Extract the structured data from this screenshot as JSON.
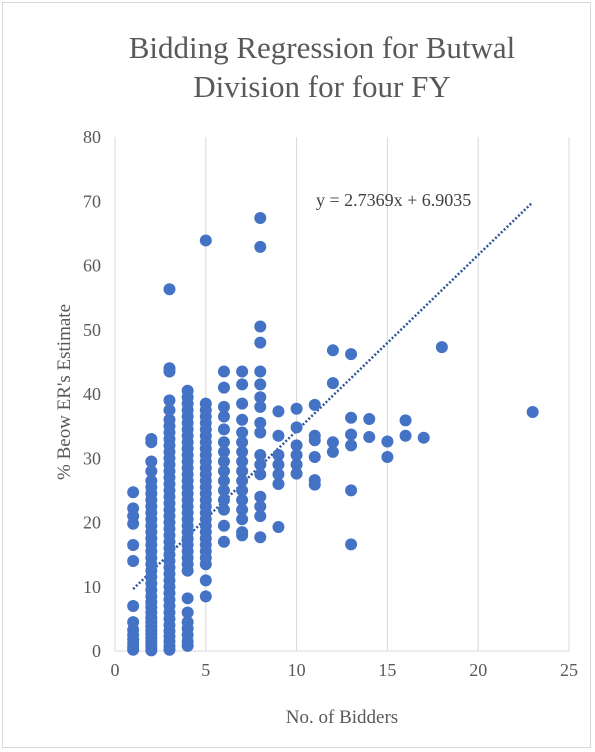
{
  "chart_data": {
    "type": "scatter",
    "title_lines": [
      "Bidding Regression for Butwal",
      "Division for four FY"
    ],
    "xlabel": "No. of Bidders",
    "ylabel": "% Beow ER's Estimate",
    "xlim": [
      0,
      25
    ],
    "ylim": [
      0,
      80
    ],
    "x_ticks": [
      "0",
      "5",
      "10",
      "15",
      "20",
      "25"
    ],
    "y_ticks": [
      "0",
      "10",
      "20",
      "30",
      "40",
      "50",
      "60",
      "70",
      "80"
    ],
    "grid": "vertical",
    "marker_color": "#4472C4",
    "trendline": {
      "type": "linear",
      "slope": 2.7369,
      "intercept": 6.9035,
      "x_range": [
        1,
        23
      ],
      "equation": "y = 2.7369x + 6.9035",
      "color": "#2F5597"
    },
    "points": [
      {
        "x": 1,
        "y": 0.2
      },
      {
        "x": 1,
        "y": 0.6
      },
      {
        "x": 1,
        "y": 1.2
      },
      {
        "x": 1,
        "y": 1.8
      },
      {
        "x": 1,
        "y": 2.5
      },
      {
        "x": 1,
        "y": 3.3
      },
      {
        "x": 1,
        "y": 4.5
      },
      {
        "x": 1,
        "y": 7
      },
      {
        "x": 1,
        "y": 14
      },
      {
        "x": 1,
        "y": 16.5
      },
      {
        "x": 1,
        "y": 19.8
      },
      {
        "x": 1,
        "y": 21
      },
      {
        "x": 1,
        "y": 22.2
      },
      {
        "x": 1,
        "y": 24.7
      },
      {
        "x": 2,
        "y": 0.1
      },
      {
        "x": 2,
        "y": 0.5
      },
      {
        "x": 2,
        "y": 1
      },
      {
        "x": 2,
        "y": 1.5
      },
      {
        "x": 2,
        "y": 2
      },
      {
        "x": 2,
        "y": 2.6
      },
      {
        "x": 2,
        "y": 3.2
      },
      {
        "x": 2,
        "y": 3.8
      },
      {
        "x": 2,
        "y": 4.5
      },
      {
        "x": 2,
        "y": 5.2
      },
      {
        "x": 2,
        "y": 6
      },
      {
        "x": 2,
        "y": 6.8
      },
      {
        "x": 2,
        "y": 7.6
      },
      {
        "x": 2,
        "y": 8.5
      },
      {
        "x": 2,
        "y": 9.5
      },
      {
        "x": 2,
        "y": 10.5
      },
      {
        "x": 2,
        "y": 11.5
      },
      {
        "x": 2,
        "y": 12.5
      },
      {
        "x": 2,
        "y": 13.5
      },
      {
        "x": 2,
        "y": 14.5
      },
      {
        "x": 2,
        "y": 15.5
      },
      {
        "x": 2,
        "y": 16.5
      },
      {
        "x": 2,
        "y": 17.5
      },
      {
        "x": 2,
        "y": 18.5
      },
      {
        "x": 2,
        "y": 19.5
      },
      {
        "x": 2,
        "y": 20.5
      },
      {
        "x": 2,
        "y": 21.5
      },
      {
        "x": 2,
        "y": 22.5
      },
      {
        "x": 2,
        "y": 23.5
      },
      {
        "x": 2,
        "y": 24.5
      },
      {
        "x": 2,
        "y": 25.5
      },
      {
        "x": 2,
        "y": 26.5
      },
      {
        "x": 2,
        "y": 28
      },
      {
        "x": 2,
        "y": 29.5
      },
      {
        "x": 2,
        "y": 32.5
      },
      {
        "x": 2,
        "y": 33
      },
      {
        "x": 3,
        "y": 0.2
      },
      {
        "x": 3,
        "y": 0.8
      },
      {
        "x": 3,
        "y": 1.5
      },
      {
        "x": 3,
        "y": 2.3
      },
      {
        "x": 3,
        "y": 3.1
      },
      {
        "x": 3,
        "y": 4
      },
      {
        "x": 3,
        "y": 5
      },
      {
        "x": 3,
        "y": 6
      },
      {
        "x": 3,
        "y": 7
      },
      {
        "x": 3,
        "y": 8
      },
      {
        "x": 3,
        "y": 9
      },
      {
        "x": 3,
        "y": 10
      },
      {
        "x": 3,
        "y": 11
      },
      {
        "x": 3,
        "y": 12
      },
      {
        "x": 3,
        "y": 13
      },
      {
        "x": 3,
        "y": 14
      },
      {
        "x": 3,
        "y": 15
      },
      {
        "x": 3,
        "y": 16
      },
      {
        "x": 3,
        "y": 17
      },
      {
        "x": 3,
        "y": 18
      },
      {
        "x": 3,
        "y": 19
      },
      {
        "x": 3,
        "y": 20
      },
      {
        "x": 3,
        "y": 21
      },
      {
        "x": 3,
        "y": 22
      },
      {
        "x": 3,
        "y": 23
      },
      {
        "x": 3,
        "y": 24
      },
      {
        "x": 3,
        "y": 25
      },
      {
        "x": 3,
        "y": 26
      },
      {
        "x": 3,
        "y": 27
      },
      {
        "x": 3,
        "y": 28
      },
      {
        "x": 3,
        "y": 29
      },
      {
        "x": 3,
        "y": 30
      },
      {
        "x": 3,
        "y": 31
      },
      {
        "x": 3,
        "y": 32
      },
      {
        "x": 3,
        "y": 33
      },
      {
        "x": 3,
        "y": 34
      },
      {
        "x": 3,
        "y": 35
      },
      {
        "x": 3,
        "y": 36
      },
      {
        "x": 3,
        "y": 37.5
      },
      {
        "x": 3,
        "y": 39
      },
      {
        "x": 3,
        "y": 43.5
      },
      {
        "x": 3,
        "y": 44
      },
      {
        "x": 3,
        "y": 56.3
      },
      {
        "x": 4,
        "y": 0.8
      },
      {
        "x": 4,
        "y": 1.5
      },
      {
        "x": 4,
        "y": 2.5
      },
      {
        "x": 4,
        "y": 3.5
      },
      {
        "x": 4,
        "y": 4.5
      },
      {
        "x": 4,
        "y": 6
      },
      {
        "x": 4,
        "y": 8.2
      },
      {
        "x": 4,
        "y": 12.5
      },
      {
        "x": 4,
        "y": 13.5
      },
      {
        "x": 4,
        "y": 14.5
      },
      {
        "x": 4,
        "y": 15.5
      },
      {
        "x": 4,
        "y": 16.5
      },
      {
        "x": 4,
        "y": 17.5
      },
      {
        "x": 4,
        "y": 18.5
      },
      {
        "x": 4,
        "y": 19.5
      },
      {
        "x": 4,
        "y": 20.5
      },
      {
        "x": 4,
        "y": 21.5
      },
      {
        "x": 4,
        "y": 22.5
      },
      {
        "x": 4,
        "y": 23.5
      },
      {
        "x": 4,
        "y": 24.5
      },
      {
        "x": 4,
        "y": 25.5
      },
      {
        "x": 4,
        "y": 26.5
      },
      {
        "x": 4,
        "y": 27.5
      },
      {
        "x": 4,
        "y": 28.5
      },
      {
        "x": 4,
        "y": 29.5
      },
      {
        "x": 4,
        "y": 30.5
      },
      {
        "x": 4,
        "y": 31.5
      },
      {
        "x": 4,
        "y": 32.5
      },
      {
        "x": 4,
        "y": 33.5
      },
      {
        "x": 4,
        "y": 34.5
      },
      {
        "x": 4,
        "y": 35.5
      },
      {
        "x": 4,
        "y": 36.5
      },
      {
        "x": 4,
        "y": 37.5
      },
      {
        "x": 4,
        "y": 38.5
      },
      {
        "x": 4,
        "y": 39.5
      },
      {
        "x": 4,
        "y": 40.5
      },
      {
        "x": 5,
        "y": 8.5
      },
      {
        "x": 5,
        "y": 11
      },
      {
        "x": 5,
        "y": 13.5
      },
      {
        "x": 5,
        "y": 14.5
      },
      {
        "x": 5,
        "y": 15.5
      },
      {
        "x": 5,
        "y": 16.5
      },
      {
        "x": 5,
        "y": 17.5
      },
      {
        "x": 5,
        "y": 18.5
      },
      {
        "x": 5,
        "y": 19.5
      },
      {
        "x": 5,
        "y": 20.5
      },
      {
        "x": 5,
        "y": 21.5
      },
      {
        "x": 5,
        "y": 22.5
      },
      {
        "x": 5,
        "y": 23.5
      },
      {
        "x": 5,
        "y": 24.5
      },
      {
        "x": 5,
        "y": 25.5
      },
      {
        "x": 5,
        "y": 26.5
      },
      {
        "x": 5,
        "y": 27.5
      },
      {
        "x": 5,
        "y": 28.5
      },
      {
        "x": 5,
        "y": 29.5
      },
      {
        "x": 5,
        "y": 30.5
      },
      {
        "x": 5,
        "y": 31.5
      },
      {
        "x": 5,
        "y": 32.5
      },
      {
        "x": 5,
        "y": 33.5
      },
      {
        "x": 5,
        "y": 34.5
      },
      {
        "x": 5,
        "y": 35.5
      },
      {
        "x": 5,
        "y": 36.5
      },
      {
        "x": 5,
        "y": 37.5
      },
      {
        "x": 5,
        "y": 38.5
      },
      {
        "x": 5,
        "y": 63.9
      },
      {
        "x": 6,
        "y": 17
      },
      {
        "x": 6,
        "y": 19.5
      },
      {
        "x": 6,
        "y": 22
      },
      {
        "x": 6,
        "y": 23.5
      },
      {
        "x": 6,
        "y": 25
      },
      {
        "x": 6,
        "y": 26.5
      },
      {
        "x": 6,
        "y": 28
      },
      {
        "x": 6,
        "y": 29.5
      },
      {
        "x": 6,
        "y": 31
      },
      {
        "x": 6,
        "y": 32.5
      },
      {
        "x": 6,
        "y": 34.5
      },
      {
        "x": 6,
        "y": 36.5
      },
      {
        "x": 6,
        "y": 38
      },
      {
        "x": 6,
        "y": 41
      },
      {
        "x": 6,
        "y": 43.5
      },
      {
        "x": 7,
        "y": 18
      },
      {
        "x": 7,
        "y": 18.5
      },
      {
        "x": 7,
        "y": 20.5
      },
      {
        "x": 7,
        "y": 22
      },
      {
        "x": 7,
        "y": 23.5
      },
      {
        "x": 7,
        "y": 25
      },
      {
        "x": 7,
        "y": 26.5
      },
      {
        "x": 7,
        "y": 28
      },
      {
        "x": 7,
        "y": 29.5
      },
      {
        "x": 7,
        "y": 31
      },
      {
        "x": 7,
        "y": 32.5
      },
      {
        "x": 7,
        "y": 34
      },
      {
        "x": 7,
        "y": 36
      },
      {
        "x": 7,
        "y": 38.5
      },
      {
        "x": 7,
        "y": 41.5
      },
      {
        "x": 7,
        "y": 43.5
      },
      {
        "x": 8,
        "y": 17.7
      },
      {
        "x": 8,
        "y": 21
      },
      {
        "x": 8,
        "y": 22.5
      },
      {
        "x": 8,
        "y": 24
      },
      {
        "x": 8,
        "y": 27.5
      },
      {
        "x": 8,
        "y": 29
      },
      {
        "x": 8,
        "y": 30.5
      },
      {
        "x": 8,
        "y": 34
      },
      {
        "x": 8,
        "y": 35.5
      },
      {
        "x": 8,
        "y": 38
      },
      {
        "x": 8,
        "y": 39.5
      },
      {
        "x": 8,
        "y": 41.5
      },
      {
        "x": 8,
        "y": 43.5
      },
      {
        "x": 8,
        "y": 48
      },
      {
        "x": 8,
        "y": 50.5
      },
      {
        "x": 8,
        "y": 62.9
      },
      {
        "x": 8,
        "y": 67.4
      },
      {
        "x": 9,
        "y": 19.3
      },
      {
        "x": 9,
        "y": 26
      },
      {
        "x": 9,
        "y": 27.5
      },
      {
        "x": 9,
        "y": 29
      },
      {
        "x": 9,
        "y": 30.5
      },
      {
        "x": 9,
        "y": 33.5
      },
      {
        "x": 9,
        "y": 37.3
      },
      {
        "x": 10,
        "y": 27.6
      },
      {
        "x": 10,
        "y": 29
      },
      {
        "x": 10,
        "y": 30.5
      },
      {
        "x": 10,
        "y": 32
      },
      {
        "x": 10,
        "y": 34.8
      },
      {
        "x": 10,
        "y": 37.7
      },
      {
        "x": 11,
        "y": 25.9
      },
      {
        "x": 11,
        "y": 26.6
      },
      {
        "x": 11,
        "y": 30.2
      },
      {
        "x": 11,
        "y": 32.8
      },
      {
        "x": 11,
        "y": 33.5
      },
      {
        "x": 11,
        "y": 38.3
      },
      {
        "x": 12,
        "y": 31
      },
      {
        "x": 12,
        "y": 32.5
      },
      {
        "x": 12,
        "y": 41.7
      },
      {
        "x": 12,
        "y": 46.8
      },
      {
        "x": 13,
        "y": 16.6
      },
      {
        "x": 13,
        "y": 25
      },
      {
        "x": 13,
        "y": 32
      },
      {
        "x": 13,
        "y": 33.7
      },
      {
        "x": 13,
        "y": 36.3
      },
      {
        "x": 13,
        "y": 46.2
      },
      {
        "x": 14,
        "y": 33.3
      },
      {
        "x": 14,
        "y": 36.1
      },
      {
        "x": 15,
        "y": 30.2
      },
      {
        "x": 15,
        "y": 32.6
      },
      {
        "x": 16,
        "y": 33.5
      },
      {
        "x": 16,
        "y": 35.9
      },
      {
        "x": 17,
        "y": 33.2
      },
      {
        "x": 18,
        "y": 47.3
      },
      {
        "x": 23,
        "y": 37.2
      }
    ]
  }
}
